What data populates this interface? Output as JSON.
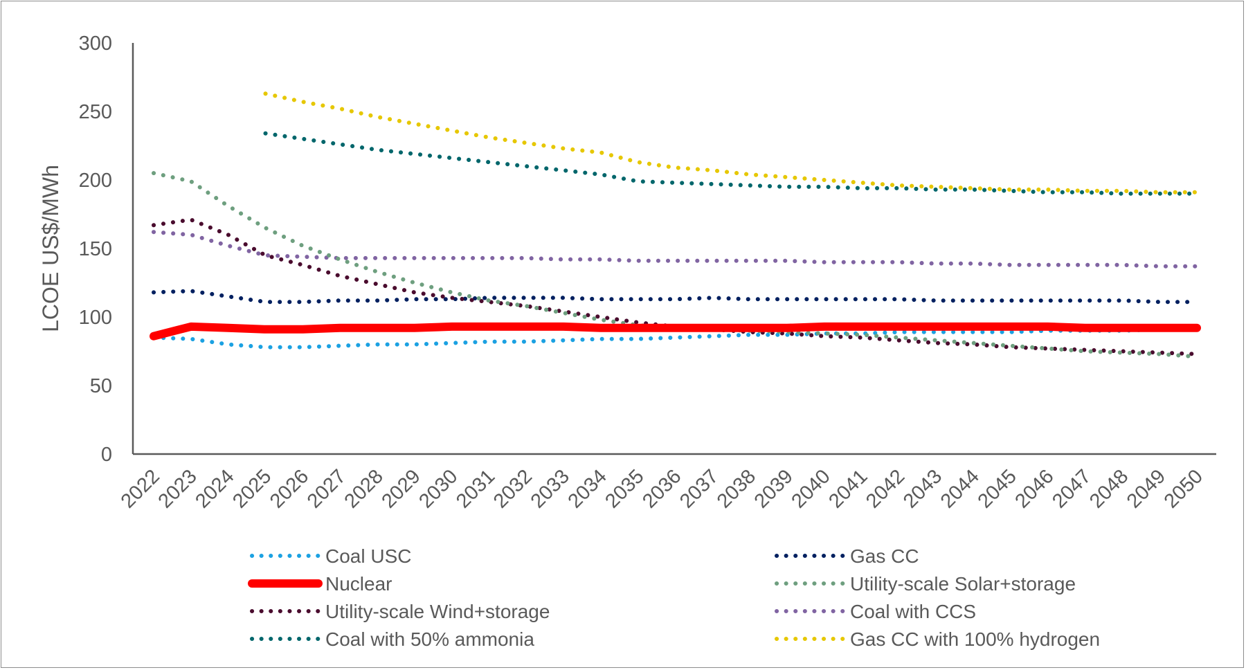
{
  "chart_data": {
    "type": "line",
    "title": "",
    "xlabel": "",
    "ylabel": "LCOE US$/MWh",
    "ylim": [
      0,
      300
    ],
    "yticks": [
      0,
      50,
      100,
      150,
      200,
      250,
      300
    ],
    "grid": false,
    "legend_position": "bottom",
    "x": [
      2022,
      2023,
      2024,
      2025,
      2026,
      2027,
      2028,
      2029,
      2030,
      2031,
      2032,
      2033,
      2034,
      2035,
      2036,
      2037,
      2038,
      2039,
      2040,
      2041,
      2042,
      2043,
      2044,
      2045,
      2046,
      2047,
      2048,
      2049,
      2050
    ],
    "series": [
      {
        "name": "Coal USC",
        "color": "#1BA1E2",
        "style": "dotted",
        "values": [
          85,
          84,
          80,
          78,
          78,
          79,
          80,
          80,
          81,
          82,
          82,
          83,
          84,
          84,
          85,
          86,
          87,
          87,
          88,
          88,
          89,
          89,
          89,
          89,
          90,
          90,
          90,
          91,
          91
        ]
      },
      {
        "name": "Gas CC",
        "color": "#002060",
        "style": "dotted",
        "values": [
          118,
          119,
          115,
          111,
          111,
          112,
          112,
          113,
          113,
          114,
          114,
          114,
          113,
          113,
          113,
          114,
          113,
          113,
          113,
          113,
          113,
          112,
          112,
          112,
          112,
          112,
          112,
          111,
          111
        ]
      },
      {
        "name": "Nuclear",
        "color": "#FF0000",
        "style": "solid",
        "values": [
          86,
          93,
          92,
          91,
          91,
          92,
          92,
          92,
          93,
          93,
          93,
          93,
          92,
          92,
          92,
          92,
          92,
          92,
          93,
          93,
          93,
          93,
          93,
          93,
          93,
          92,
          92,
          92,
          92
        ]
      },
      {
        "name": "Utility-scale Solar+storage",
        "color": "#6E9F7F",
        "style": "dotted",
        "values": [
          205,
          199,
          181,
          165,
          152,
          142,
          133,
          125,
          118,
          112,
          108,
          103,
          98,
          94,
          92,
          91,
          90,
          89,
          88,
          87,
          85,
          83,
          81,
          79,
          77,
          75,
          74,
          73,
          71
        ]
      },
      {
        "name": "Utility-scale Wind+storage",
        "color": "#4A0C2E",
        "style": "dotted",
        "values": [
          167,
          171,
          160,
          145,
          138,
          130,
          124,
          118,
          114,
          111,
          108,
          104,
          100,
          96,
          93,
          91,
          89,
          88,
          86,
          85,
          83,
          81,
          80,
          78,
          77,
          76,
          75,
          74,
          73
        ]
      },
      {
        "name": "Coal with CCS",
        "color": "#8064A2",
        "style": "dotted",
        "values": [
          162,
          160,
          152,
          145,
          144,
          143,
          143,
          143,
          143,
          143,
          143,
          142,
          142,
          141,
          141,
          141,
          141,
          141,
          140,
          140,
          140,
          139,
          139,
          138,
          138,
          138,
          138,
          137,
          137
        ]
      },
      {
        "name": "Coal with 50% ammonia",
        "color": "#00666B",
        "style": "dotted",
        "values": [
          null,
          null,
          null,
          234,
          230,
          226,
          222,
          219,
          216,
          213,
          210,
          207,
          204,
          199,
          198,
          197,
          196,
          195,
          195,
          194,
          194,
          193,
          193,
          192,
          191,
          191,
          190,
          190,
          190
        ]
      },
      {
        "name": "Gas CC with 100% hydrogen",
        "color": "#E6C700",
        "style": "dotted",
        "values": [
          null,
          null,
          null,
          263,
          257,
          252,
          246,
          241,
          236,
          231,
          227,
          223,
          220,
          213,
          209,
          207,
          204,
          202,
          200,
          198,
          196,
          195,
          194,
          193,
          193,
          192,
          192,
          191,
          191
        ]
      }
    ]
  }
}
